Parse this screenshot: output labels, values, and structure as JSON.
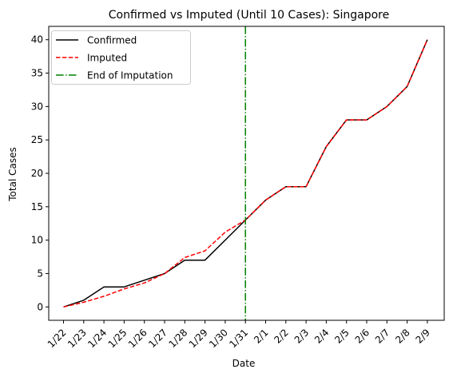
{
  "chart_data": {
    "type": "line",
    "title": "Confirmed vs Imputed (Until 10 Cases): Singapore",
    "xlabel": "Date",
    "ylabel": "Total Cases",
    "categories": [
      "1/22",
      "1/23",
      "1/24",
      "1/25",
      "1/26",
      "1/27",
      "1/28",
      "1/29",
      "1/30",
      "1/31",
      "2/1",
      "2/2",
      "2/3",
      "2/4",
      "2/5",
      "2/6",
      "2/7",
      "2/8",
      "2/9"
    ],
    "ylim": [
      -2,
      42
    ],
    "yticks": [
      0,
      5,
      10,
      15,
      20,
      25,
      30,
      35,
      40
    ],
    "grid": false,
    "legend_position": "top-left",
    "series": [
      {
        "name": "Confirmed",
        "color": "#000000",
        "style": "solid",
        "values": [
          0,
          1,
          3,
          3,
          4,
          5,
          7,
          7,
          10,
          13,
          16,
          18,
          18,
          24,
          28,
          28,
          30,
          33,
          40
        ]
      },
      {
        "name": "Imputed",
        "color": "#ff0000",
        "style": "dashed",
        "values": [
          0,
          0.7,
          1.6,
          2.7,
          3.6,
          5,
          7.4,
          8.4,
          11.2,
          13,
          16,
          18,
          18,
          24,
          28,
          28,
          30,
          33,
          40
        ]
      }
    ],
    "vline": {
      "name": "End of Imputation",
      "x": "1/31",
      "color": "#008000",
      "style": "dashdot"
    }
  }
}
